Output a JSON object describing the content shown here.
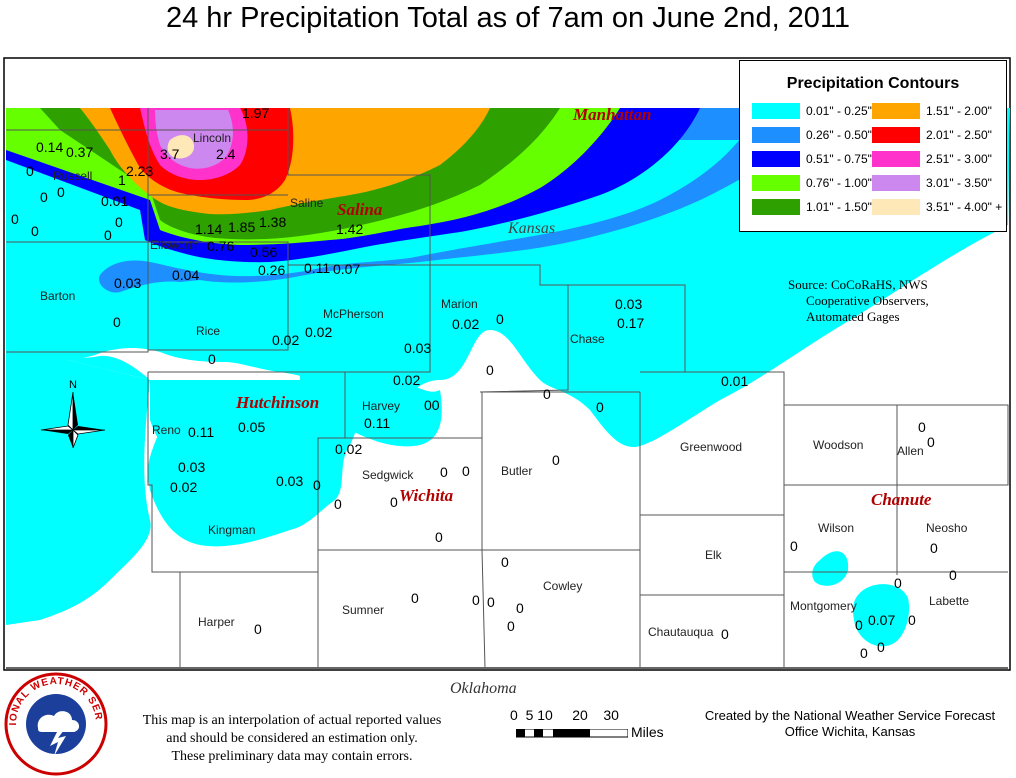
{
  "title": "24 hr Precipitation Total as of 7am on June 2nd, 2011",
  "legend": {
    "title": "Precipitation Contours",
    "items": [
      {
        "label": "0.01\" - 0.25\"",
        "color": "#00ffff"
      },
      {
        "label": "0.26\" - 0.50\"",
        "color": "#1e8fff"
      },
      {
        "label": "0.51\" - 0.75\"",
        "color": "#0000ff"
      },
      {
        "label": "0.76\" - 1.00\"",
        "color": "#66ff00"
      },
      {
        "label": "1.01\" - 1.50\"",
        "color": "#2ea000"
      },
      {
        "label": "1.51\" - 2.00\"",
        "color": "#ffa500"
      },
      {
        "label": "2.01\" - 2.50\"",
        "color": "#ff0000"
      },
      {
        "label": "2.51\" - 3.00\"",
        "color": "#ff33cc"
      },
      {
        "label": "3.01\" - 3.50\"",
        "color": "#cc88ee"
      },
      {
        "label": "3.51\" - 4.00\" +",
        "color": "#ffe8b8"
      }
    ]
  },
  "source": [
    "Source: CoCoRaHS, NWS",
    "Cooperative Observers,",
    "Automated Gages"
  ],
  "cities": [
    "Manhattan",
    "Salina",
    "Hutchinson",
    "Wichita",
    "Chanute"
  ],
  "state_labels": {
    "kansas": "Kansas",
    "oklahoma": "Oklahoma"
  },
  "counties": [
    "Russell",
    "Lincoln",
    "Saline",
    "Ellsworth",
    "Barton",
    "Rice",
    "McPherson",
    "Marion",
    "Chase",
    "Reno",
    "Harvey",
    "Butler",
    "Greenwood",
    "Woodson",
    "Allen",
    "Sedgwick",
    "Kingman",
    "Elk",
    "Wilson",
    "Neosho",
    "Cowley",
    "Sumner",
    "Harper",
    "Chautauqua",
    "Montgomery",
    "Labette"
  ],
  "observations": [
    "1.97",
    "3.7",
    "2.4",
    "0.14",
    "0.37",
    "2.23",
    "1",
    "0.01",
    "1.14",
    "1.85",
    "1.38",
    "1.42",
    "0.76",
    "0.56",
    "0.26",
    "0.11",
    "0.07",
    "0.03",
    "0.04",
    "0.02",
    "0.02",
    "0.02",
    "0.03",
    "0.03",
    "0.17",
    "0.02",
    "0.11",
    "0.05",
    "0.11",
    "0.02",
    "0.03",
    "0.02",
    "0.03",
    "0.01",
    "0.07",
    "0",
    "0"
  ],
  "disclaimer": [
    "This map is an interpolation of actual reported values",
    "and should be considered an estimation only.",
    "These preliminary data may contain errors."
  ],
  "credit": [
    "Created by the National Weather Service Forecast",
    "Office Wichita, Kansas"
  ],
  "scale": {
    "ticks": "0  5 10     20    30",
    "unit": "Miles"
  },
  "logo_text": "NATIONAL WEATHER SERVICE"
}
